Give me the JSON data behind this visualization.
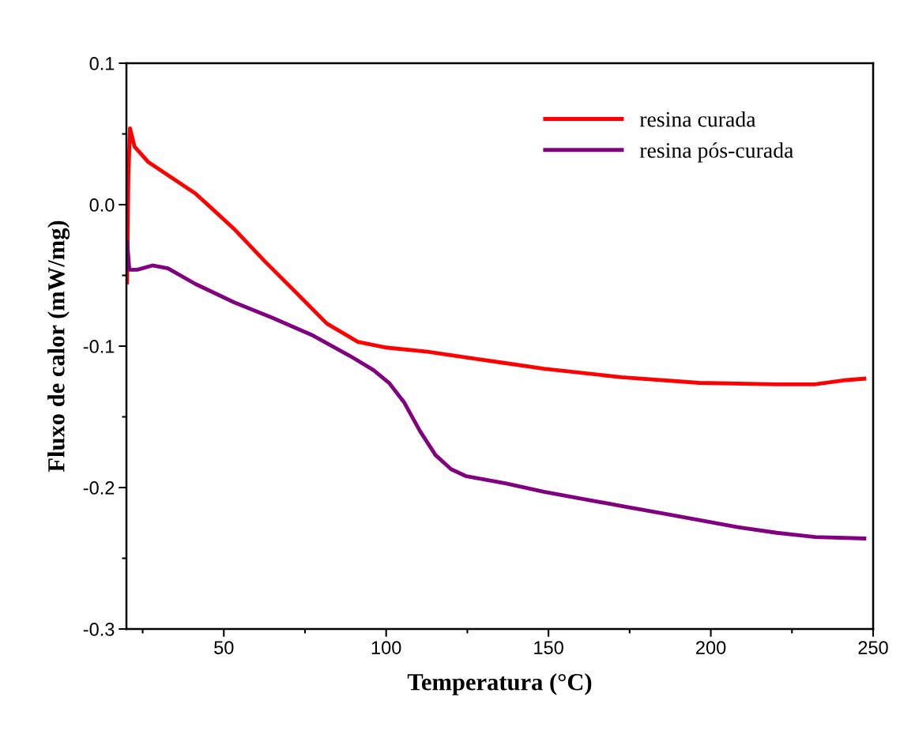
{
  "chart_data": {
    "type": "line",
    "xlabel": "Temperatura (°C)",
    "ylabel": "Fluxo de calor (mW/mg)",
    "xlim": [
      20,
      250
    ],
    "xticks": [
      50,
      100,
      150,
      200,
      250
    ],
    "ylim": [
      -0.3,
      0.1
    ],
    "yticks": [
      -0.3,
      -0.2,
      -0.1,
      {
        "value": 0,
        "label": "0.0"
      },
      0.1
    ],
    "legend": "top right",
    "grid": false,
    "marker": "none",
    "line_style": "solid",
    "series": [
      {
        "name": "resina curada",
        "color": "#ff0000",
        "x": [
          20.2,
          20.6,
          21.1,
          22.5,
          26.8,
          34,
          41.2,
          46,
          53.1,
          62.6,
          72.2,
          81.7,
          91.3,
          100,
          112.8,
          124.7,
          136.7,
          148.6,
          172.5,
          196.4,
          220.3,
          232,
          241.8,
          247.3
        ],
        "values": [
          -0.055,
          0.02,
          0.054,
          0.041,
          0.03,
          0.019,
          0.008,
          -0.002,
          -0.017,
          -0.04,
          -0.062,
          -0.084,
          -0.097,
          -0.101,
          -0.104,
          -0.108,
          -0.112,
          -0.116,
          -0.122,
          -0.126,
          -0.127,
          -0.127,
          -0.124,
          -0.123
        ]
      },
      {
        "name": "resina pós-curada",
        "color": "#800080",
        "x": [
          20.2,
          20.9,
          23.3,
          28,
          32.8,
          41.2,
          53.1,
          65,
          77,
          88.9,
          96.1,
          100.9,
          105.6,
          110.4,
          115.2,
          120,
          124.7,
          136.7,
          148.6,
          160.5,
          172.5,
          184.4,
          196.4,
          208.3,
          220.3,
          232.2,
          247.3
        ],
        "values": [
          -0.026,
          -0.046,
          -0.046,
          -0.043,
          -0.045,
          -0.056,
          -0.069,
          -0.08,
          -0.092,
          -0.107,
          -0.117,
          -0.126,
          -0.14,
          -0.16,
          -0.177,
          -0.187,
          -0.192,
          -0.197,
          -0.203,
          -0.208,
          -0.213,
          -0.218,
          -0.223,
          -0.228,
          -0.232,
          -0.235,
          -0.236
        ]
      }
    ]
  }
}
